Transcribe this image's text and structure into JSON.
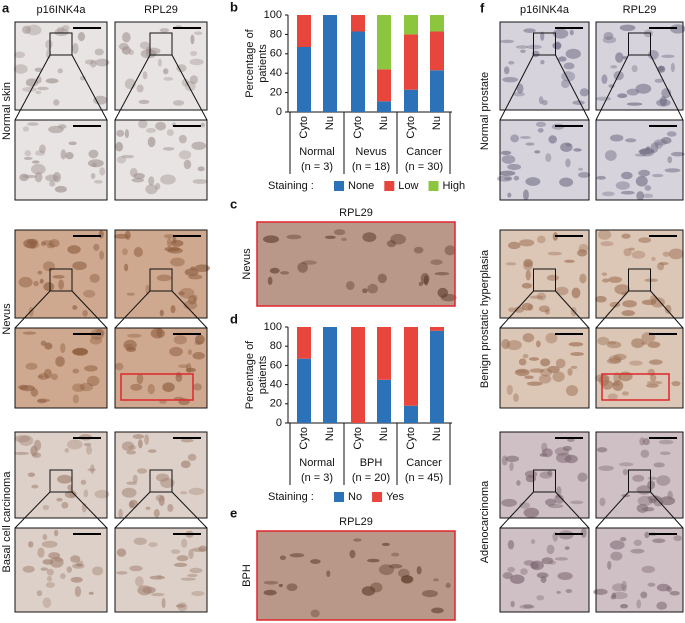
{
  "panels": {
    "a": {
      "letter": "a",
      "columns": [
        "p16INK4a",
        "RPL29"
      ],
      "rows": [
        "Normal skin",
        "Nevus",
        "Basal cell carcinoma"
      ]
    },
    "c": {
      "letter": "c",
      "title": "RPL29",
      "label": "Nevus"
    },
    "e": {
      "letter": "e",
      "title": "RPL29",
      "label": "BPH"
    },
    "f": {
      "letter": "f",
      "columns": [
        "p16INK4a",
        "RPL29"
      ],
      "rows": [
        "Normal prostate",
        "Benign prostatic hyperplasia",
        "Adenocarcinoma"
      ]
    }
  },
  "chart_data": [
    {
      "type": "bar",
      "stacked": true,
      "panel": "b",
      "ylabel": [
        "Percentage of",
        "patients"
      ],
      "categories": [
        "Cyto",
        "Nu",
        "Cyto",
        "Nu",
        "Cyto",
        "Nu"
      ],
      "groups": [
        {
          "name": "Normal",
          "n": "(n = 3)"
        },
        {
          "name": "Nevus",
          "n": "(n = 18)"
        },
        {
          "name": "Cancer",
          "n": "(n = 30)"
        }
      ],
      "legend_title": "Staining :",
      "series": [
        {
          "name": "None",
          "color": "#2b72b8",
          "values": [
            67,
            100,
            83,
            11,
            23,
            43
          ]
        },
        {
          "name": "Low",
          "color": "#e8463d",
          "values": [
            33,
            0,
            17,
            33,
            57,
            40
          ]
        },
        {
          "name": "High",
          "color": "#8cc63f",
          "values": [
            0,
            0,
            0,
            56,
            20,
            17
          ]
        }
      ],
      "ylim": [
        0,
        100
      ],
      "yticks": [
        0,
        20,
        40,
        60,
        80,
        100
      ]
    },
    {
      "type": "bar",
      "stacked": true,
      "panel": "d",
      "ylabel": [
        "Percentage of",
        "patients"
      ],
      "categories": [
        "Cyto",
        "Nu",
        "Cyto",
        "Nu",
        "Cyto",
        "Nu"
      ],
      "groups": [
        {
          "name": "Normal",
          "n": "(n = 3)"
        },
        {
          "name": "BPH",
          "n": "(n = 20)"
        },
        {
          "name": "Cancer",
          "n": "(n = 45)"
        }
      ],
      "legend_title": "Staining :",
      "series": [
        {
          "name": "No",
          "color": "#2b72b8",
          "values": [
            67,
            100,
            0,
            45,
            18,
            96
          ]
        },
        {
          "name": "Yes",
          "color": "#e8463d",
          "values": [
            33,
            0,
            100,
            55,
            82,
            4
          ]
        }
      ],
      "ylim": [
        0,
        100
      ],
      "yticks": [
        0,
        20,
        40,
        60,
        80,
        100
      ]
    }
  ]
}
